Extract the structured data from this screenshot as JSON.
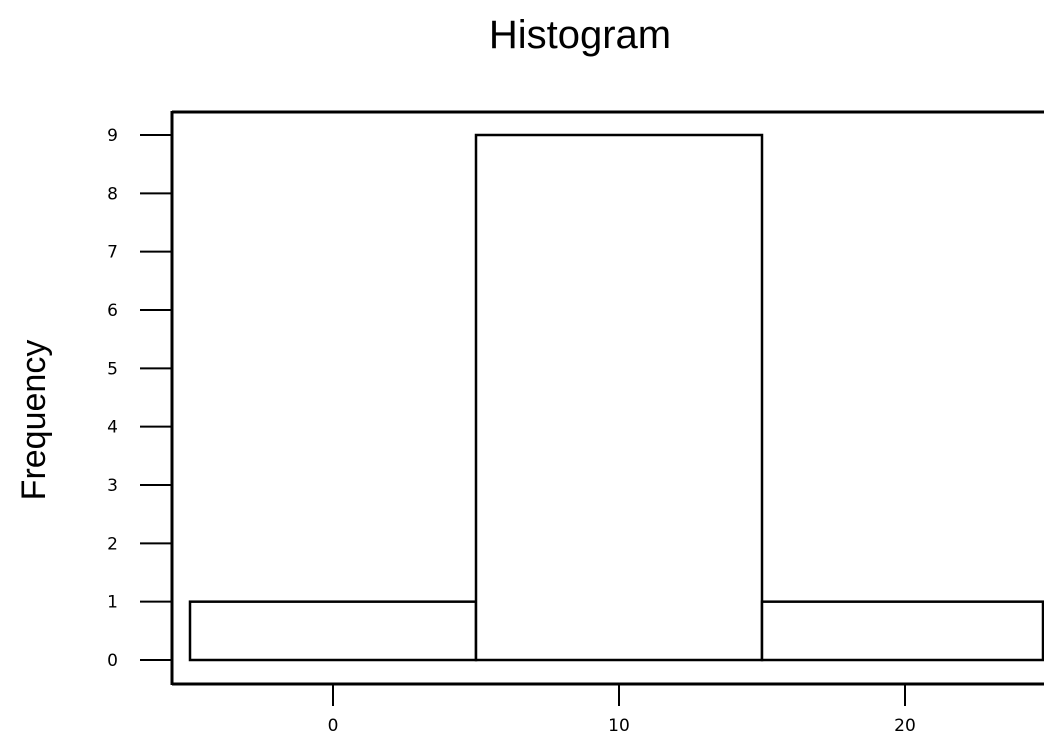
{
  "chart_data": {
    "type": "bar",
    "title": "Histogram",
    "xlabel": "",
    "ylabel": "Frequency",
    "bins": [
      {
        "start": -5,
        "end": 5,
        "count": 1
      },
      {
        "start": 5,
        "end": 15,
        "count": 9
      },
      {
        "start": 15,
        "end": 25,
        "count": 1
      }
    ],
    "x_ticks": [
      0,
      10,
      20
    ],
    "y_ticks": [
      0,
      1,
      2,
      3,
      4,
      5,
      6,
      7,
      8,
      9
    ],
    "xlim": [
      -5.7,
      25
    ],
    "ylim": [
      -0.4,
      9.4
    ],
    "grid": false,
    "bar_fill": "#ffffff",
    "bar_stroke": "#000000"
  }
}
